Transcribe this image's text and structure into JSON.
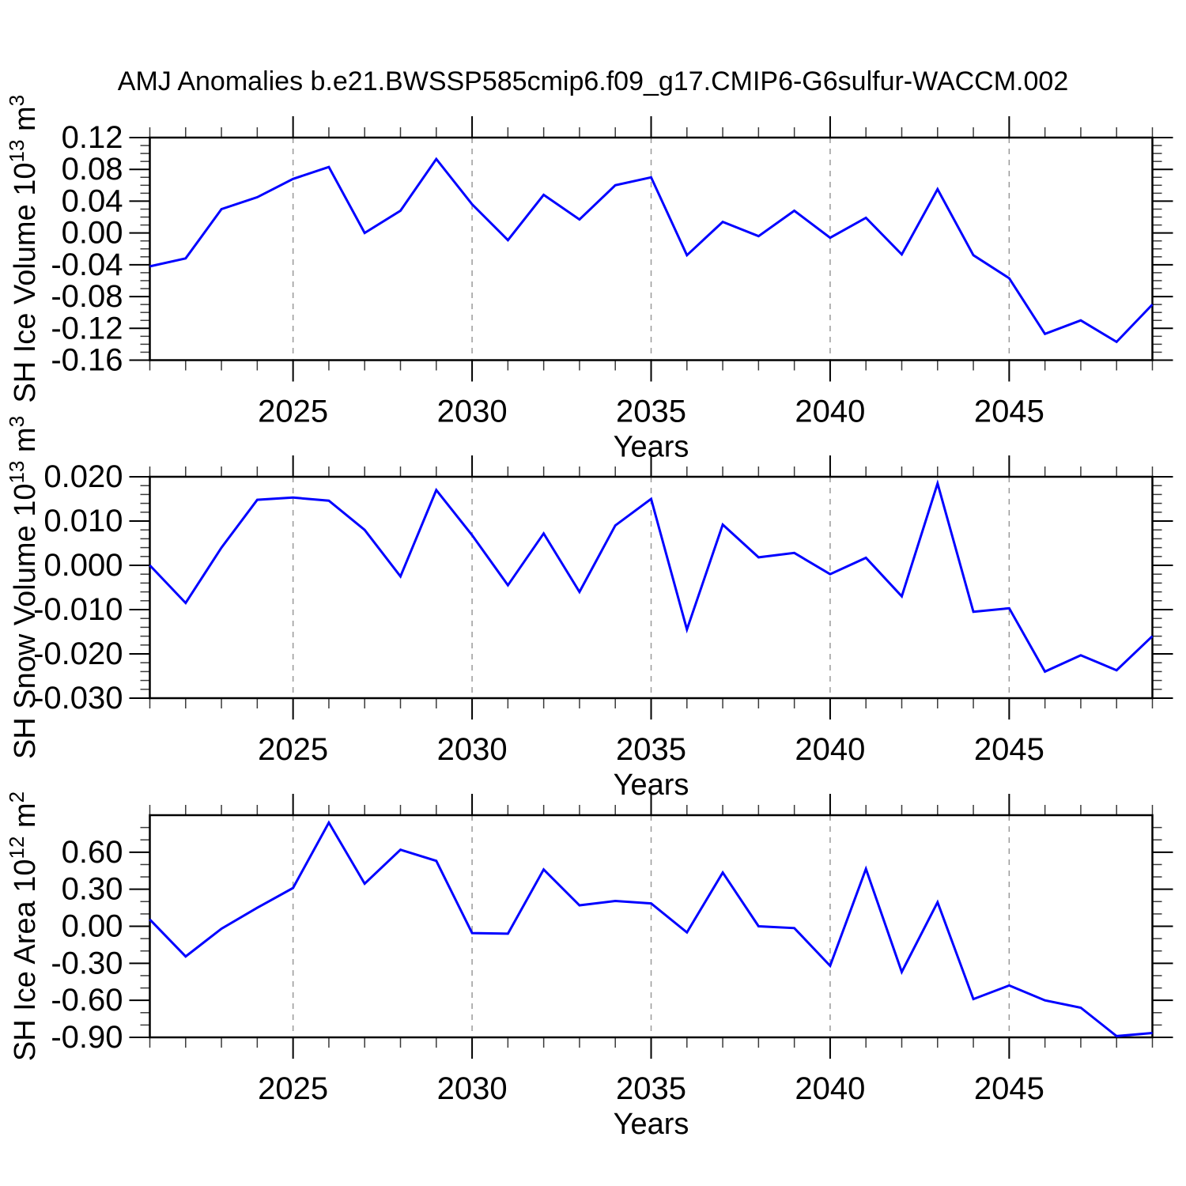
{
  "title": "AMJ Anomalies b.e21.BWSSP585cmip6.f09_g17.CMIP6-G6sulfur-WACCM.002",
  "xlabel": "Years",
  "colors": {
    "line": "#0000ff",
    "frame": "#000000",
    "major_tick": "#000000",
    "minor_tick": "#3a3a3a",
    "grid": "#999999",
    "background": "#ffffff",
    "text": "#000000"
  },
  "years": [
    2021,
    2022,
    2023,
    2024,
    2025,
    2026,
    2027,
    2028,
    2029,
    2030,
    2031,
    2032,
    2033,
    2034,
    2035,
    2036,
    2037,
    2038,
    2039,
    2040,
    2041,
    2042,
    2043,
    2044,
    2045,
    2046,
    2047,
    2048,
    2049
  ],
  "x_major_ticks": [
    2025,
    2030,
    2035,
    2040,
    2045
  ],
  "x_major_labels": [
    "2025",
    "2030",
    "2035",
    "2040",
    "2045"
  ],
  "chart_data": [
    {
      "type": "line",
      "name": "sh-ice-volume",
      "ylabel_parts": [
        {
          "text": "SH Ice Volume 10",
          "sup": false
        },
        {
          "text": "13",
          "sup": true
        },
        {
          "text": " m",
          "sup": false
        },
        {
          "text": "3",
          "sup": true
        }
      ],
      "ylim": [
        -0.16,
        0.12
      ],
      "ytick_major": [
        0.12,
        0.08,
        0.04,
        0.0,
        -0.04,
        -0.08,
        -0.12,
        -0.16
      ],
      "ytick_labels": [
        "0.12",
        "0.08",
        "0.04",
        "0.00",
        "-0.04",
        "-0.08",
        "-0.12",
        "-0.16"
      ],
      "yminor_step": 0.01,
      "grid": "dashed-vertical-at-major-years",
      "values": [
        -0.042,
        -0.032,
        0.03,
        0.045,
        0.068,
        0.083,
        0.0,
        0.028,
        0.093,
        0.036,
        -0.009,
        0.048,
        0.017,
        0.06,
        0.07,
        -0.028,
        0.014,
        -0.004,
        0.028,
        -0.006,
        0.019,
        -0.027,
        0.055,
        -0.028,
        -0.057,
        -0.127,
        -0.11,
        -0.137,
        -0.09
      ]
    },
    {
      "type": "line",
      "name": "sh-snow-volume",
      "ylabel_parts": [
        {
          "text": "SH Snow Volume 10",
          "sup": false
        },
        {
          "text": "13",
          "sup": true
        },
        {
          "text": " m",
          "sup": false
        },
        {
          "text": "3",
          "sup": true
        }
      ],
      "ylim": [
        -0.03,
        0.02
      ],
      "ytick_major": [
        0.02,
        0.01,
        0.0,
        -0.01,
        -0.02,
        -0.03
      ],
      "ytick_labels": [
        "0.020",
        "0.010",
        "0.000",
        "-0.010",
        "-0.020",
        "-0.030"
      ],
      "yminor_step": 0.002,
      "grid": "dashed-vertical-at-major-years",
      "values": [
        0.0,
        -0.0085,
        0.004,
        0.0148,
        0.0153,
        0.0146,
        0.008,
        -0.0025,
        0.017,
        0.0068,
        -0.0045,
        0.0072,
        -0.006,
        0.009,
        0.015,
        -0.0145,
        0.0092,
        0.0018,
        0.0028,
        -0.002,
        0.0017,
        -0.007,
        0.0185,
        -0.0105,
        -0.0097,
        -0.024,
        -0.0203,
        -0.0237,
        -0.016
      ]
    },
    {
      "type": "line",
      "name": "sh-ice-area",
      "ylabel_parts": [
        {
          "text": "SH Ice Area 10",
          "sup": false
        },
        {
          "text": "12",
          "sup": true
        },
        {
          "text": " m",
          "sup": false
        },
        {
          "text": "2",
          "sup": true
        }
      ],
      "ylim": [
        -0.9,
        0.9
      ],
      "ytick_major": [
        0.6,
        0.3,
        0.0,
        -0.3,
        -0.6,
        -0.9
      ],
      "ytick_labels": [
        "0.60",
        "0.30",
        "0.00",
        "-0.30",
        "-0.60",
        "-0.90"
      ],
      "yminor_step": 0.1,
      "grid": "dashed-vertical-at-major-years",
      "values": [
        0.055,
        -0.245,
        -0.02,
        0.15,
        0.31,
        0.84,
        0.345,
        0.62,
        0.53,
        -0.055,
        -0.06,
        0.46,
        0.17,
        0.205,
        0.185,
        -0.05,
        0.435,
        0.0,
        -0.015,
        -0.32,
        0.465,
        -0.37,
        0.195,
        -0.59,
        -0.48,
        -0.6,
        -0.66,
        -0.89,
        -0.865
      ]
    }
  ]
}
